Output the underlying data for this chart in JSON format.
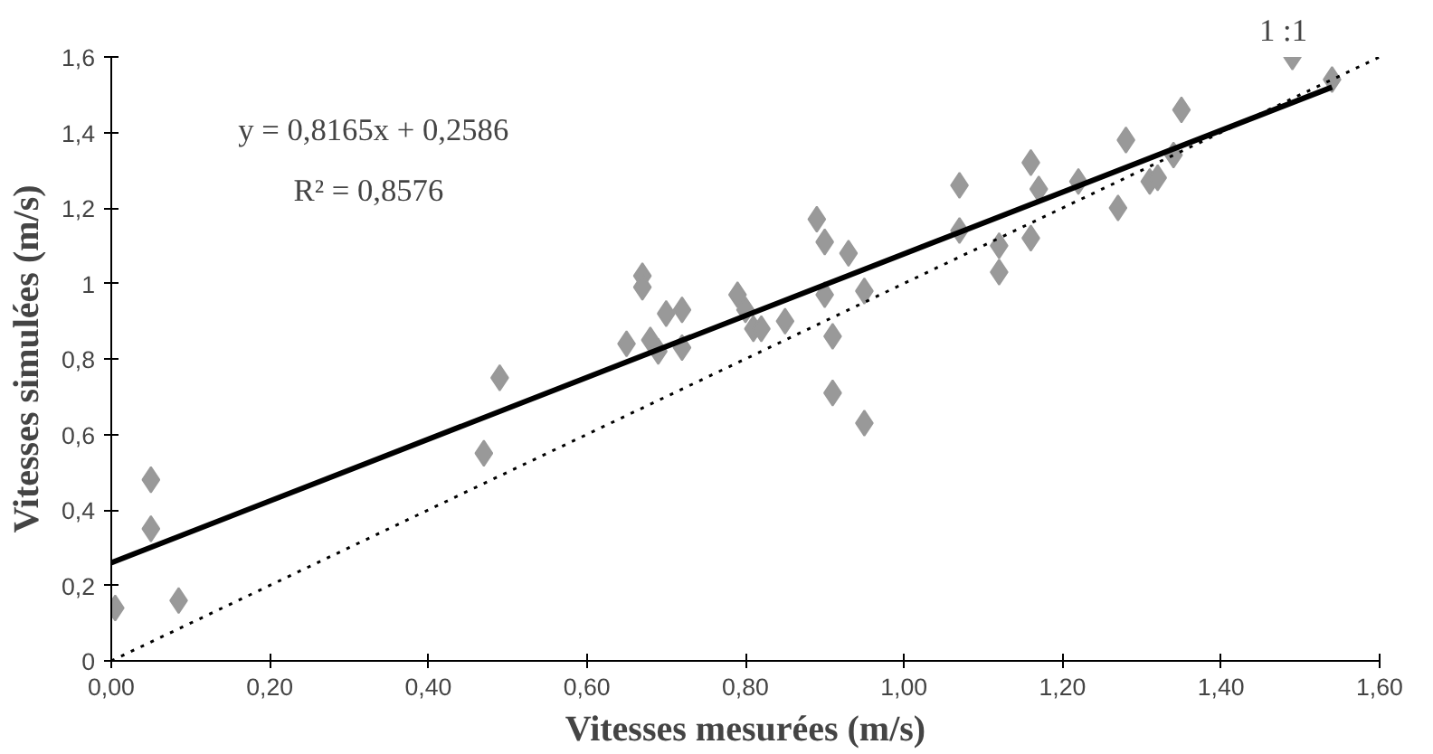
{
  "chart_data": {
    "type": "scatter",
    "xlabel": "Vitesses mesurées (m/s)",
    "ylabel": "Vitesses simulées (m/s)",
    "annotations": [
      "y = 0,8165x + 0,2586",
      "R² = 0,8576",
      "1 :1"
    ],
    "series": [
      {
        "color": "#999999",
        "marker": "diamond",
        "x": [
          0.005,
          0.05,
          0.05,
          0.085,
          0.47,
          0.49,
          0.65,
          0.67,
          0.67,
          0.68,
          0.69,
          0.7,
          0.72,
          0.72,
          0.79,
          0.8,
          0.81,
          0.82,
          0.85,
          0.89,
          0.9,
          0.9,
          0.91,
          0.91,
          0.93,
          0.95,
          0.95,
          1.07,
          1.07,
          1.12,
          1.12,
          1.16,
          1.16,
          1.17,
          1.22,
          1.27,
          1.28,
          1.31,
          1.32,
          1.34,
          1.35,
          1.49,
          1.54
        ],
        "values": [
          0.14,
          0.48,
          0.35,
          0.16,
          0.55,
          0.75,
          0.84,
          1.02,
          0.99,
          0.85,
          0.82,
          0.92,
          0.93,
          0.83,
          0.97,
          0.93,
          0.88,
          0.88,
          0.9,
          1.17,
          1.11,
          0.97,
          0.86,
          0.71,
          1.08,
          0.98,
          0.63,
          1.26,
          1.14,
          1.1,
          1.03,
          1.32,
          1.12,
          1.25,
          1.27,
          1.2,
          1.38,
          1.27,
          1.28,
          1.34,
          1.46,
          1.6,
          1.54
        ]
      },
      {
        "type": "line",
        "color": "#000000",
        "line_style": "solid",
        "x": [
          0,
          1.54
        ],
        "values": [
          0.26,
          1.52
        ]
      },
      {
        "type": "line",
        "color": "#000000",
        "line_style": "dotted",
        "x": [
          0,
          1.6
        ],
        "values": [
          0,
          1.6
        ]
      }
    ],
    "xlim": [
      0,
      1.6
    ],
    "ylim": [
      0,
      1.6
    ],
    "xticks": [
      {
        "value": 0,
        "label": "0,00"
      },
      {
        "value": 0.2,
        "label": "0,20"
      },
      {
        "value": 0.4,
        "label": "0,40"
      },
      {
        "value": 0.6,
        "label": "0,60"
      },
      {
        "value": 0.8,
        "label": "0,80"
      },
      {
        "value": 1,
        "label": "1,00"
      },
      {
        "value": 1.2,
        "label": "1,20"
      },
      {
        "value": 1.4,
        "label": "1,40"
      },
      {
        "value": 1.6,
        "label": "1,60"
      }
    ],
    "yticks": [
      0,
      {
        "value": 0.2,
        "label": "0,2"
      },
      {
        "value": 0.4,
        "label": "0,4"
      },
      {
        "value": 0.6,
        "label": "0,6"
      },
      {
        "value": 0.8,
        "label": "0,8"
      },
      1,
      {
        "value": 1.2,
        "label": "1,2"
      },
      {
        "value": 1.4,
        "label": "1,4"
      },
      {
        "value": 1.6,
        "label": "1,6"
      }
    ],
    "grid": false
  }
}
